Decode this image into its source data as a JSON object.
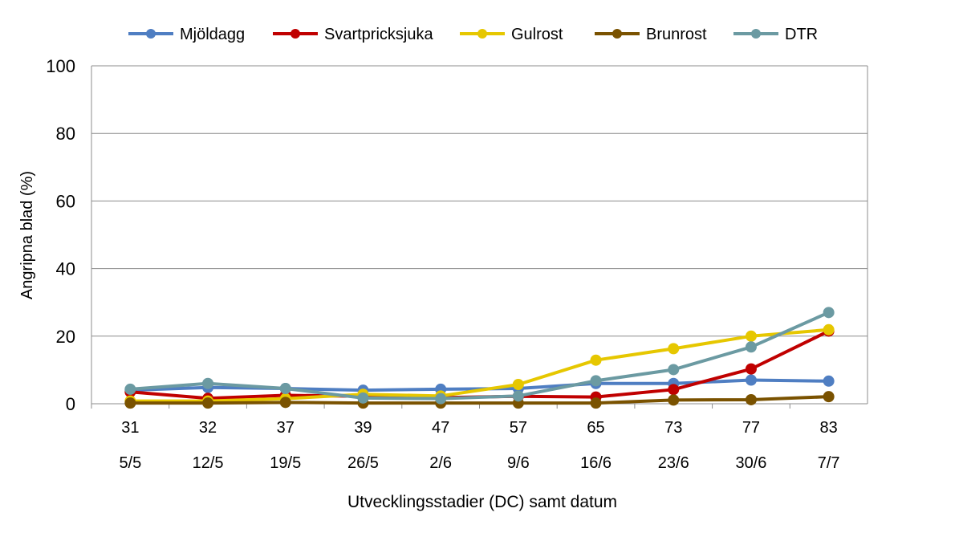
{
  "chart_data": {
    "type": "line",
    "title": "",
    "xlabel": "Utvecklingsstadier (DC) samt datum",
    "ylabel": "Angripna blad (%)",
    "ylim": [
      0,
      100
    ],
    "yticks": [
      0,
      20,
      40,
      60,
      80,
      100
    ],
    "grid": true,
    "legend_position": "top",
    "categories_dc": [
      "31",
      "32",
      "37",
      "39",
      "47",
      "57",
      "65",
      "73",
      "77",
      "83"
    ],
    "categories_date": [
      "5/5",
      "12/5",
      "19/5",
      "26/5",
      "2/6",
      "9/6",
      "16/6",
      "23/6",
      "30/6",
      "7/7"
    ],
    "series": [
      {
        "name": "Mjöldagg",
        "color": "#4f7ec2",
        "values": [
          4,
          4.8,
          4.5,
          4,
          4.3,
          4.5,
          6,
          6,
          7,
          6.7
        ]
      },
      {
        "name": "Svartpricksjuka",
        "color": "#c00000",
        "values": [
          3.5,
          1.6,
          2.5,
          2.2,
          1.8,
          2.2,
          2,
          4.2,
          10.3,
          21.5
        ]
      },
      {
        "name": "Gulrost",
        "color": "#e6c700",
        "values": [
          0.8,
          0.8,
          1.5,
          2.8,
          2.3,
          5.7,
          12.9,
          16.3,
          20,
          21.9
        ]
      },
      {
        "name": "Brunrost",
        "color": "#7a5200",
        "values": [
          0.2,
          0.2,
          0.4,
          0.2,
          0.2,
          0.2,
          0.2,
          1.1,
          1.2,
          2.1
        ]
      },
      {
        "name": "DTR",
        "color": "#6b9aa2",
        "values": [
          4.3,
          6,
          4.5,
          1.7,
          1.5,
          2.3,
          6.8,
          10.1,
          16.8,
          27
        ]
      }
    ]
  }
}
